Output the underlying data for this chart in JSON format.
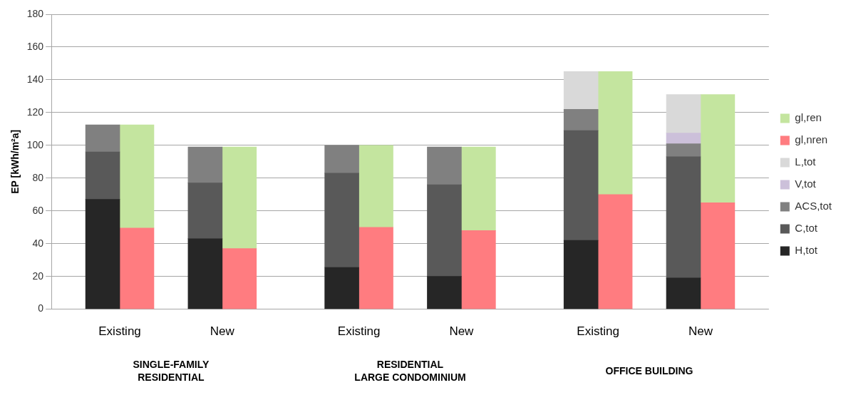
{
  "chart_data": {
    "type": "bar",
    "stacked": true,
    "ylabel": "EP [kWh/m²a]",
    "ylim": [
      0,
      180
    ],
    "yticks": [
      0,
      20,
      40,
      60,
      80,
      100,
      120,
      140,
      160,
      180
    ],
    "categories": [
      null,
      "Existing",
      null,
      null,
      "New",
      null,
      null,
      null,
      "Existing",
      null,
      null,
      "New",
      null,
      null,
      null,
      "Existing",
      null,
      null,
      "New",
      null,
      null
    ],
    "grid": "y",
    "legend": "right",
    "series": [
      {
        "name": "H,tot",
        "color": "#262626",
        "values": [
          null,
          67,
          null,
          null,
          43,
          null,
          null,
          null,
          25.5,
          null,
          null,
          20,
          null,
          null,
          null,
          42,
          null,
          null,
          19,
          null,
          null
        ]
      },
      {
        "name": "C,tot",
        "color": "#595959",
        "values": [
          null,
          29,
          null,
          null,
          34,
          null,
          null,
          null,
          57.5,
          null,
          null,
          56,
          null,
          null,
          null,
          67,
          null,
          null,
          74,
          null,
          null
        ]
      },
      {
        "name": "ACS,tot",
        "color": "#808080",
        "values": [
          null,
          16.5,
          null,
          null,
          22,
          null,
          null,
          null,
          17,
          null,
          null,
          23,
          null,
          null,
          null,
          13,
          null,
          null,
          8,
          null,
          null
        ]
      },
      {
        "name": "V,tot",
        "color": "#ccc0da",
        "values": [
          null,
          null,
          null,
          null,
          null,
          null,
          null,
          null,
          null,
          null,
          null,
          null,
          null,
          null,
          null,
          null,
          null,
          null,
          6.5,
          null,
          null
        ]
      },
      {
        "name": "L,tot",
        "color": "#d9d9d9",
        "values": [
          null,
          null,
          null,
          null,
          null,
          null,
          null,
          null,
          null,
          null,
          null,
          null,
          null,
          null,
          null,
          23,
          null,
          null,
          23.5,
          null,
          null
        ]
      },
      {
        "name": "gl,nren",
        "color": "#ff7c80",
        "values": [
          null,
          null,
          49.5,
          null,
          null,
          37,
          null,
          null,
          null,
          50,
          null,
          null,
          48,
          null,
          null,
          null,
          70,
          null,
          null,
          65,
          null
        ]
      },
      {
        "name": "gl,ren",
        "color": "#c4e59f",
        "values": [
          null,
          null,
          63,
          null,
          null,
          62,
          null,
          null,
          null,
          50,
          null,
          null,
          51,
          null,
          null,
          null,
          75,
          null,
          null,
          66,
          null
        ]
      }
    ],
    "annotations": [
      "SINGLE-FAMILY\nRESIDENTIAL",
      "RESIDENTIAL\nLARGE CONDOMINIUM",
      "OFFICE BUILDING"
    ]
  }
}
